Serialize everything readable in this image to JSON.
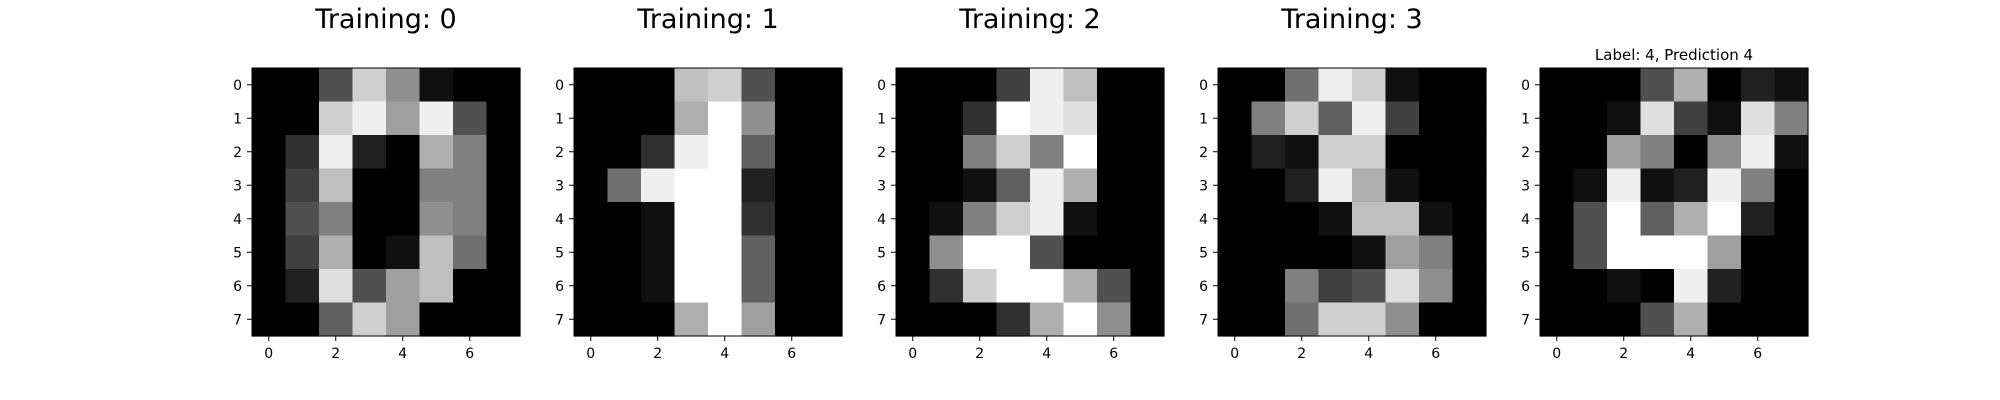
{
  "chart_data": [
    {
      "type": "heatmap",
      "title": "Training: 0",
      "colormap": "gray_r",
      "value_range": [
        0,
        16
      ],
      "x_ticks": [
        0,
        2,
        4,
        6
      ],
      "y_ticks": [
        0,
        1,
        2,
        3,
        4,
        5,
        6,
        7
      ],
      "values": [
        [
          0,
          0,
          5,
          13,
          9,
          1,
          0,
          0
        ],
        [
          0,
          0,
          13,
          15,
          10,
          15,
          5,
          0
        ],
        [
          0,
          3,
          15,
          2,
          0,
          11,
          8,
          0
        ],
        [
          0,
          4,
          12,
          0,
          0,
          8,
          8,
          0
        ],
        [
          0,
          5,
          8,
          0,
          0,
          9,
          8,
          0
        ],
        [
          0,
          4,
          11,
          0,
          1,
          12,
          7,
          0
        ],
        [
          0,
          2,
          14,
          5,
          10,
          12,
          0,
          0
        ],
        [
          0,
          0,
          6,
          13,
          10,
          0,
          0,
          0
        ]
      ]
    },
    {
      "type": "heatmap",
      "title": "Training: 1",
      "colormap": "gray_r",
      "value_range": [
        0,
        16
      ],
      "x_ticks": [
        0,
        2,
        4,
        6
      ],
      "y_ticks": [
        0,
        1,
        2,
        3,
        4,
        5,
        6,
        7
      ],
      "values": [
        [
          0,
          0,
          0,
          12,
          13,
          5,
          0,
          0
        ],
        [
          0,
          0,
          0,
          11,
          16,
          9,
          0,
          0
        ],
        [
          0,
          0,
          3,
          15,
          16,
          6,
          0,
          0
        ],
        [
          0,
          7,
          15,
          16,
          16,
          2,
          0,
          0
        ],
        [
          0,
          0,
          1,
          16,
          16,
          3,
          0,
          0
        ],
        [
          0,
          0,
          1,
          16,
          16,
          6,
          0,
          0
        ],
        [
          0,
          0,
          1,
          16,
          16,
          6,
          0,
          0
        ],
        [
          0,
          0,
          0,
          11,
          16,
          10,
          0,
          0
        ]
      ]
    },
    {
      "type": "heatmap",
      "title": "Training: 2",
      "colormap": "gray_r",
      "value_range": [
        0,
        16
      ],
      "x_ticks": [
        0,
        2,
        4,
        6
      ],
      "y_ticks": [
        0,
        1,
        2,
        3,
        4,
        5,
        6,
        7
      ],
      "values": [
        [
          0,
          0,
          0,
          4,
          15,
          12,
          0,
          0
        ],
        [
          0,
          0,
          3,
          16,
          15,
          14,
          0,
          0
        ],
        [
          0,
          0,
          8,
          13,
          8,
          16,
          0,
          0
        ],
        [
          0,
          0,
          1,
          6,
          15,
          11,
          0,
          0
        ],
        [
          0,
          1,
          8,
          13,
          15,
          1,
          0,
          0
        ],
        [
          0,
          9,
          16,
          16,
          5,
          0,
          0,
          0
        ],
        [
          0,
          3,
          13,
          16,
          16,
          11,
          5,
          0
        ],
        [
          0,
          0,
          0,
          3,
          11,
          16,
          9,
          0
        ]
      ]
    },
    {
      "type": "heatmap",
      "title": "Training: 3",
      "colormap": "gray_r",
      "value_range": [
        0,
        16
      ],
      "x_ticks": [
        0,
        2,
        4,
        6
      ],
      "y_ticks": [
        0,
        1,
        2,
        3,
        4,
        5,
        6,
        7
      ],
      "values": [
        [
          0,
          0,
          7,
          15,
          13,
          1,
          0,
          0
        ],
        [
          0,
          8,
          13,
          6,
          15,
          4,
          0,
          0
        ],
        [
          0,
          2,
          1,
          13,
          13,
          0,
          0,
          0
        ],
        [
          0,
          0,
          2,
          15,
          11,
          1,
          0,
          0
        ],
        [
          0,
          0,
          0,
          1,
          12,
          12,
          1,
          0
        ],
        [
          0,
          0,
          0,
          0,
          1,
          10,
          8,
          0
        ],
        [
          0,
          0,
          8,
          4,
          5,
          14,
          9,
          0
        ],
        [
          0,
          0,
          7,
          13,
          13,
          9,
          0,
          0
        ]
      ]
    },
    {
      "type": "heatmap",
      "title": "Label: 4, Prediction 4",
      "colormap": "gray_r",
      "value_range": [
        0,
        16
      ],
      "x_ticks": [
        0,
        2,
        4,
        6
      ],
      "y_ticks": [
        0,
        1,
        2,
        3,
        4,
        5,
        6,
        7
      ],
      "values": [
        [
          0,
          0,
          0,
          5,
          11,
          0,
          2,
          1
        ],
        [
          0,
          0,
          1,
          14,
          4,
          1,
          14,
          8
        ],
        [
          0,
          0,
          10,
          8,
          0,
          9,
          15,
          1
        ],
        [
          0,
          1,
          15,
          1,
          2,
          15,
          8,
          0
        ],
        [
          0,
          5,
          16,
          6,
          11,
          16,
          2,
          0
        ],
        [
          0,
          5,
          16,
          16,
          16,
          10,
          0,
          0
        ],
        [
          0,
          0,
          1,
          0,
          15,
          2,
          0,
          0
        ],
        [
          0,
          0,
          0,
          5,
          11,
          0,
          0,
          0
        ]
      ]
    }
  ]
}
